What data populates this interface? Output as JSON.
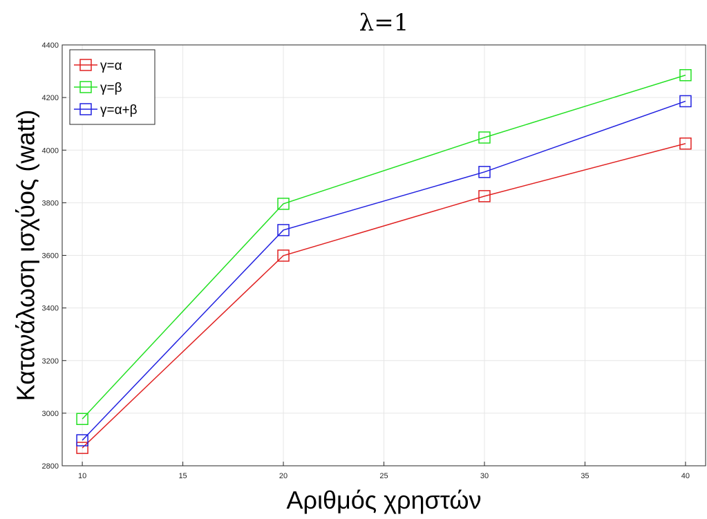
{
  "chart_data": {
    "type": "line",
    "title": "λ=1",
    "xlabel": "Αριθμός χρηστών",
    "ylabel": "Κατανάλωση ισχύος (watt)",
    "x": [
      10,
      20,
      30,
      40
    ],
    "xlim": [
      9,
      41
    ],
    "ylim": [
      2800,
      4400
    ],
    "xticks": [
      10,
      15,
      20,
      25,
      30,
      35,
      40
    ],
    "yticks": [
      2800,
      3000,
      3200,
      3400,
      3600,
      3800,
      4000,
      4200,
      4400
    ],
    "grid": true,
    "legend_position": "top-left",
    "marker": "square",
    "series": [
      {
        "name": "γ=α",
        "color": "#e02020",
        "values": [
          2868,
          3599,
          3825,
          4025
        ]
      },
      {
        "name": "γ=β",
        "color": "#22e022",
        "values": [
          2978,
          3796,
          4048,
          4285
        ]
      },
      {
        "name": "γ=α+β",
        "color": "#2020e0",
        "values": [
          2897,
          3696,
          3917,
          4186
        ]
      }
    ]
  }
}
